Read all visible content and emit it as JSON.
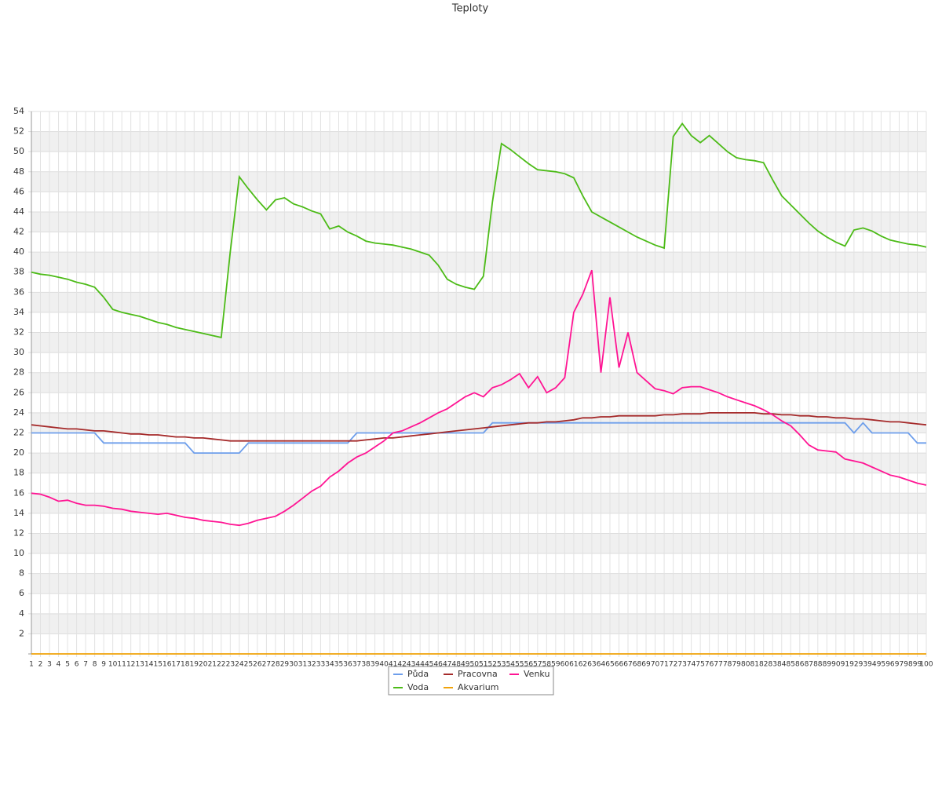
{
  "chart_data": {
    "type": "line",
    "title": "Teploty",
    "categories": [
      "1",
      "2",
      "3",
      "4",
      "5",
      "6",
      "7",
      "8",
      "9",
      "10",
      "11",
      "12",
      "13",
      "14",
      "15",
      "16",
      "17",
      "18",
      "19",
      "20",
      "21",
      "22",
      "23",
      "24",
      "25",
      "26",
      "27",
      "28",
      "29",
      "30",
      "31",
      "32",
      "33",
      "34",
      "35",
      "36",
      "37",
      "38",
      "39",
      "40",
      "41",
      "42",
      "43",
      "44",
      "45",
      "46",
      "47",
      "48",
      "49",
      "50",
      "51",
      "52",
      "53",
      "54",
      "55",
      "56",
      "57",
      "58",
      "59",
      "60",
      "61",
      "62",
      "63",
      "64",
      "65",
      "66",
      "67",
      "68",
      "69",
      "70",
      "71",
      "72",
      "73",
      "74",
      "75",
      "76",
      "77",
      "78",
      "79",
      "80",
      "81",
      "82",
      "83",
      "84",
      "85",
      "86",
      "87",
      "88",
      "89",
      "90",
      "91",
      "92",
      "93",
      "94",
      "95",
      "96",
      "97",
      "98",
      "99",
      "100"
    ],
    "series": [
      {
        "name": "Půda",
        "color": "#6d9eeb",
        "values": [
          22,
          22,
          22,
          22,
          22,
          22,
          22,
          22,
          21,
          21,
          21,
          21,
          21,
          21,
          21,
          21,
          21,
          21,
          20,
          20,
          20,
          20,
          20,
          20,
          21,
          21,
          21,
          21,
          21,
          21,
          21,
          21,
          21,
          21,
          21,
          21,
          22,
          22,
          22,
          22,
          22,
          22,
          22,
          22,
          22,
          22,
          22,
          22,
          22,
          22,
          22,
          23,
          23,
          23,
          23,
          23,
          23,
          23,
          23,
          23,
          23,
          23,
          23,
          23,
          23,
          23,
          23,
          23,
          23,
          23,
          23,
          23,
          23,
          23,
          23,
          23,
          23,
          23,
          23,
          23,
          23,
          23,
          23,
          23,
          23,
          23,
          23,
          23,
          23,
          23,
          23,
          22,
          23,
          22,
          22,
          22,
          22,
          22,
          21,
          21
        ]
      },
      {
        "name": "Pracovna",
        "color": "#a52a2a",
        "values": [
          22.8,
          22.7,
          22.6,
          22.5,
          22.4,
          22.4,
          22.3,
          22.2,
          22.2,
          22.1,
          22.0,
          21.9,
          21.9,
          21.8,
          21.8,
          21.7,
          21.6,
          21.6,
          21.5,
          21.5,
          21.4,
          21.3,
          21.2,
          21.2,
          21.2,
          21.2,
          21.2,
          21.2,
          21.2,
          21.2,
          21.2,
          21.2,
          21.2,
          21.2,
          21.2,
          21.2,
          21.2,
          21.3,
          21.4,
          21.5,
          21.5,
          21.6,
          21.7,
          21.8,
          21.9,
          22.0,
          22.1,
          22.2,
          22.3,
          22.4,
          22.5,
          22.6,
          22.7,
          22.8,
          22.9,
          23.0,
          23.0,
          23.1,
          23.1,
          23.2,
          23.3,
          23.5,
          23.5,
          23.6,
          23.6,
          23.7,
          23.7,
          23.7,
          23.7,
          23.7,
          23.8,
          23.8,
          23.9,
          23.9,
          23.9,
          24.0,
          24.0,
          24.0,
          24.0,
          24.0,
          24.0,
          23.9,
          23.9,
          23.8,
          23.8,
          23.7,
          23.7,
          23.6,
          23.6,
          23.5,
          23.5,
          23.4,
          23.4,
          23.3,
          23.2,
          23.1,
          23.1,
          23.0,
          22.9,
          22.8
        ]
      },
      {
        "name": "Venku",
        "color": "#ff1493",
        "values": [
          16,
          15.9,
          15.6,
          15.2,
          15.3,
          15.0,
          14.8,
          14.8,
          14.7,
          14.5,
          14.4,
          14.2,
          14.1,
          14.0,
          13.9,
          14.0,
          13.8,
          13.6,
          13.5,
          13.3,
          13.2,
          13.1,
          12.9,
          12.8,
          13.0,
          13.3,
          13.5,
          13.7,
          14.2,
          14.8,
          15.5,
          16.2,
          16.7,
          17.6,
          18.2,
          19.0,
          19.6,
          20.0,
          20.6,
          21.2,
          22.0,
          22.2,
          22.6,
          23.0,
          23.5,
          24.0,
          24.4,
          25.0,
          25.6,
          26.0,
          25.6,
          26.5,
          26.8,
          27.3,
          27.9,
          26.5,
          27.6,
          26.0,
          26.5,
          27.5,
          34.0,
          35.8,
          38.2,
          28.0,
          35.5,
          28.5,
          32.0,
          28.0,
          27.2,
          26.4,
          26.2,
          25.9,
          26.5,
          26.6,
          26.6,
          26.3,
          26.0,
          25.6,
          25.3,
          25.0,
          24.7,
          24.3,
          23.8,
          23.2,
          22.7,
          21.8,
          20.8,
          20.3,
          20.2,
          20.1,
          19.4,
          19.2,
          19.0,
          18.6,
          18.2,
          17.8,
          17.6,
          17.3,
          17.0,
          16.8
        ]
      },
      {
        "name": "Voda",
        "color": "#4cbb17",
        "values": [
          38,
          37.8,
          37.7,
          37.5,
          37.3,
          37.0,
          36.8,
          36.5,
          35.5,
          34.3,
          34.0,
          33.8,
          33.6,
          33.3,
          33.0,
          32.8,
          32.5,
          32.3,
          32.1,
          31.9,
          31.7,
          31.5,
          40,
          47.5,
          46.3,
          45.2,
          44.2,
          45.2,
          45.4,
          44.8,
          44.5,
          44.1,
          43.8,
          42.3,
          42.6,
          42.0,
          41.6,
          41.1,
          40.9,
          40.8,
          40.7,
          40.5,
          40.3,
          40.0,
          39.7,
          38.7,
          37.3,
          36.8,
          36.5,
          36.3,
          37.6,
          45,
          50.8,
          50.2,
          49.5,
          48.8,
          48.2,
          48.1,
          48.0,
          47.8,
          47.4,
          45.6,
          44.0,
          43.5,
          43.0,
          42.5,
          42.0,
          41.5,
          41.1,
          40.7,
          40.4,
          51.5,
          52.8,
          51.6,
          50.9,
          51.6,
          50.8,
          50.0,
          49.4,
          49.2,
          49.1,
          48.9,
          47.2,
          45.6,
          44.7,
          43.8,
          42.9,
          42.1,
          41.5,
          41.0,
          40.6,
          42.2,
          42.4,
          42.1,
          41.6,
          41.2,
          41.0,
          40.8,
          40.7,
          40.5
        ]
      },
      {
        "name": "Akvarium",
        "color": "#f0a30a",
        "values": [
          0,
          0,
          0,
          0,
          0,
          0,
          0,
          0,
          0,
          0,
          0,
          0,
          0,
          0,
          0,
          0,
          0,
          0,
          0,
          0,
          0,
          0,
          0,
          0,
          0,
          0,
          0,
          0,
          0,
          0,
          0,
          0,
          0,
          0,
          0,
          0,
          0,
          0,
          0,
          0,
          0,
          0,
          0,
          0,
          0,
          0,
          0,
          0,
          0,
          0,
          0,
          0,
          0,
          0,
          0,
          0,
          0,
          0,
          0,
          0,
          0,
          0,
          0,
          0,
          0,
          0,
          0,
          0,
          0,
          0,
          0,
          0,
          0,
          0,
          0,
          0,
          0,
          0,
          0,
          0,
          0,
          0,
          0,
          0,
          0,
          0,
          0,
          0,
          0,
          0,
          0,
          0,
          0,
          0,
          0,
          0,
          0,
          0,
          0,
          0
        ]
      }
    ],
    "ylim": [
      0,
      54
    ],
    "yticks": [
      2,
      4,
      6,
      8,
      10,
      12,
      14,
      16,
      18,
      20,
      22,
      24,
      26,
      28,
      30,
      32,
      34,
      36,
      38,
      40,
      42,
      44,
      46,
      48,
      50,
      52,
      54
    ],
    "grid": true,
    "legend": "bottom"
  }
}
